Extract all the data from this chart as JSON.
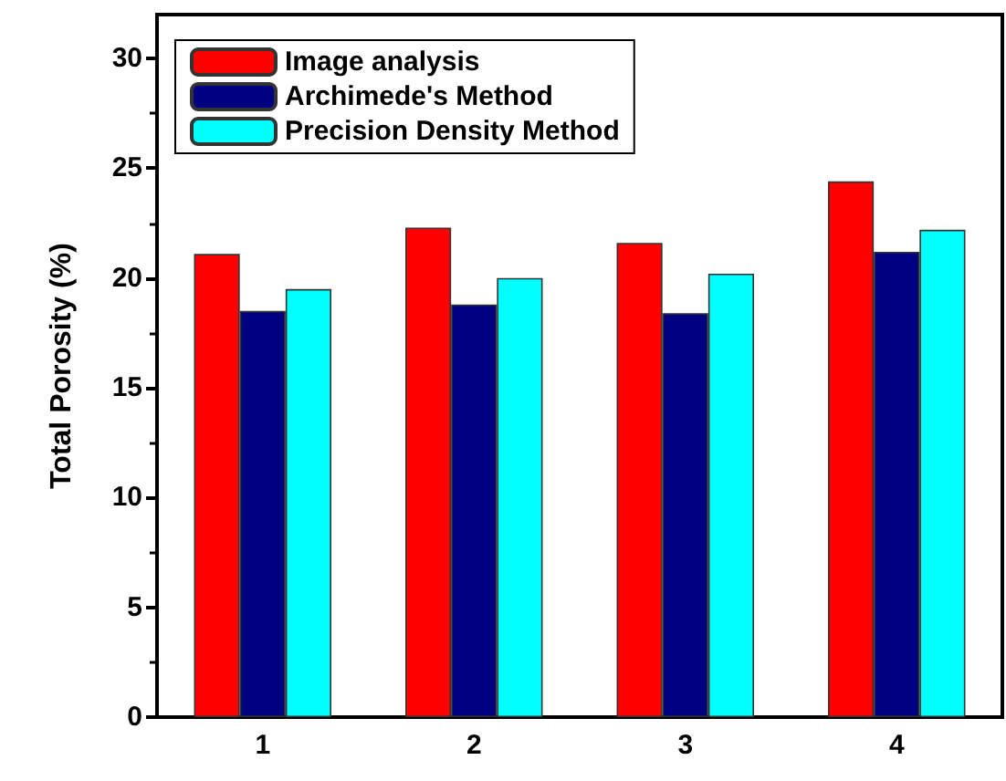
{
  "chart_data": {
    "type": "bar",
    "ylabel": "Total Porosity (%)",
    "categories": [
      "1",
      "2",
      "3",
      "4"
    ],
    "series": [
      {
        "name": "Image analysis",
        "color": "#ff0000",
        "values": [
          21.1,
          22.3,
          21.6,
          24.4
        ]
      },
      {
        "name": "Archimede's Method",
        "color": "#000080",
        "values": [
          18.5,
          18.8,
          18.4,
          21.2
        ]
      },
      {
        "name": "Precision Density Method",
        "color": "#00ffff",
        "values": [
          19.5,
          20.0,
          20.2,
          22.2
        ]
      }
    ],
    "ylim": [
      0,
      32
    ],
    "yticks": [
      0,
      5,
      10,
      15,
      20,
      25,
      30
    ],
    "grid": false,
    "legend": "top left"
  }
}
